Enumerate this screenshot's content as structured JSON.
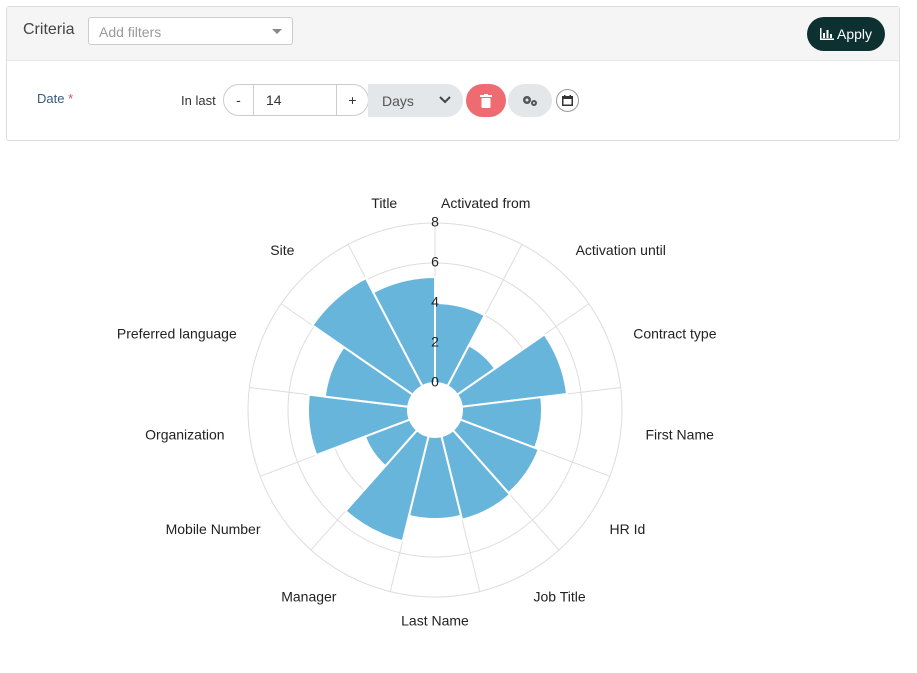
{
  "criteria": {
    "title": "Criteria",
    "filter_placeholder": "Add filters",
    "apply": "Apply"
  },
  "filter_row": {
    "label": "Date",
    "required": "*",
    "prefix": "In last",
    "minus": "-",
    "value": "14",
    "plus": "+",
    "unit": "Days"
  },
  "chart_data": {
    "type": "polarArea",
    "categories": [
      "Activated from",
      "Activation until",
      "Contract type",
      "First Name",
      "HR Id",
      "Job Title",
      "Last Name",
      "Manager",
      "Mobile Number",
      "Organization",
      "Preferred language",
      "Site",
      "Title"
    ],
    "values": [
      4,
      2.3,
      5.3,
      4,
      4.2,
      4.3,
      4.1,
      5.4,
      2.4,
      5,
      4.2,
      6.1,
      5.3
    ],
    "color": "#68b5dc",
    "rlim": [
      0,
      8
    ],
    "rticks": [
      0,
      2,
      4,
      6,
      8
    ],
    "grid": true
  }
}
